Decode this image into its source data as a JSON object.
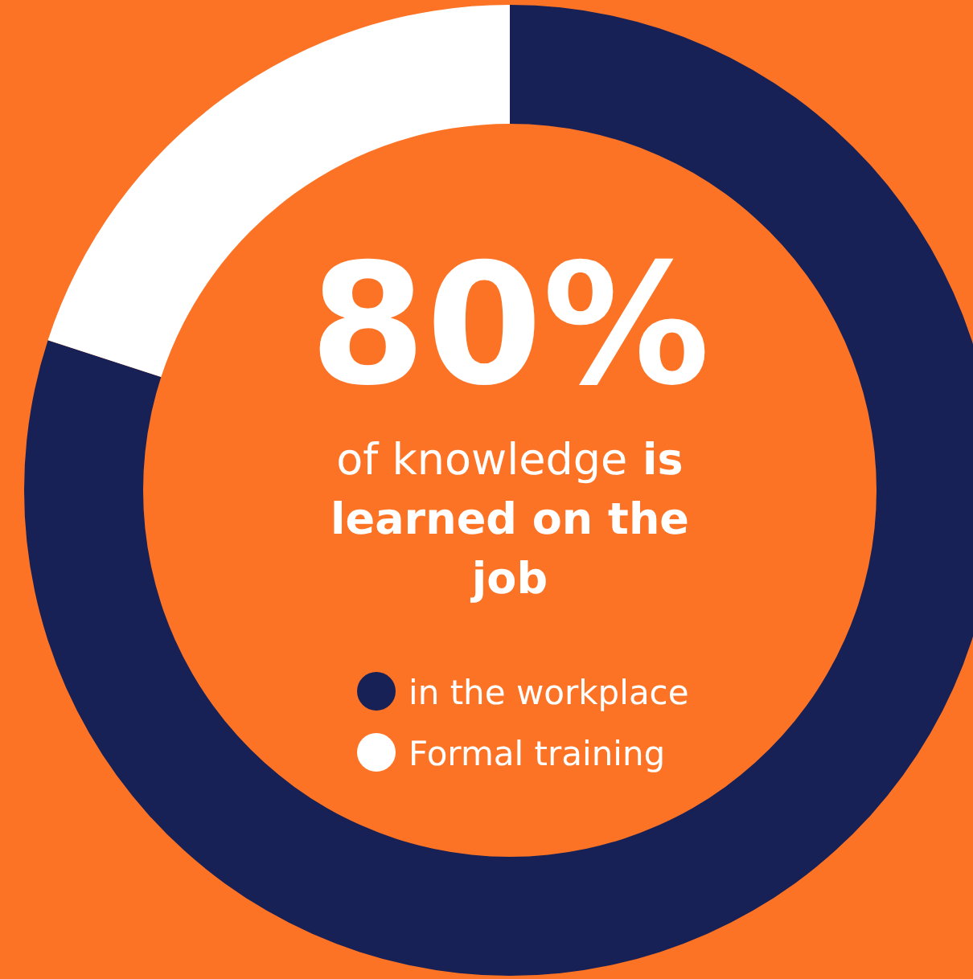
{
  "chart_data": {
    "type": "donut",
    "title": "80%",
    "annotations": [
      "of knowledge",
      "is learned on the job"
    ],
    "categories": [
      "in the workplace",
      "Formal training"
    ],
    "values": [
      80,
      20
    ],
    "colors": [
      "#172155",
      "#ffffff"
    ],
    "legend": "center"
  }
}
